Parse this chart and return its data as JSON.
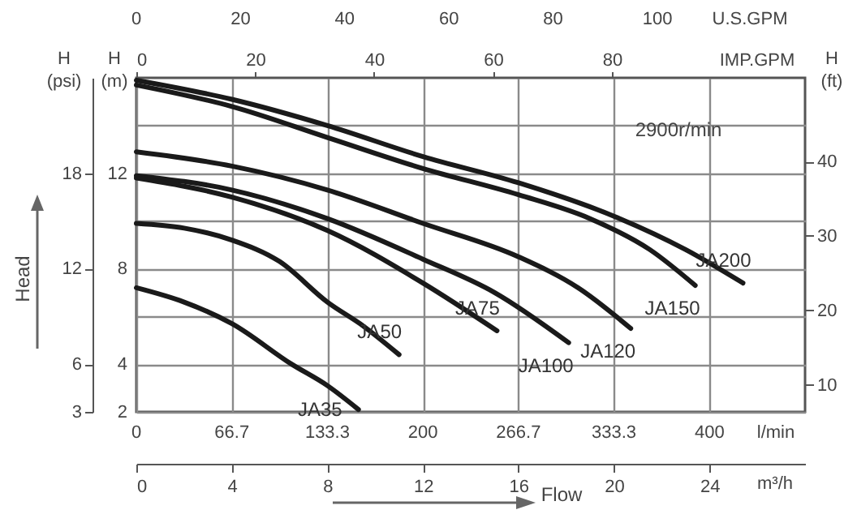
{
  "chart_data": {
    "type": "line",
    "annotations": [
      "2900r/min",
      "Head",
      "Flow",
      "0",
      "66.7",
      "133.3",
      "200",
      "266.7",
      "333.3",
      "400",
      "l/min",
      "0",
      "20",
      "40",
      "60",
      "80",
      "100",
      "U.S.GPM"
    ],
    "xlabel": "m³/h",
    "ylabel": "H (m)",
    "y2label": "H (psi)",
    "y3label": "H (ft)",
    "x2label": "IMP.GPM",
    "xlim": [
      0,
      28
    ],
    "xticks": [
      0,
      4,
      8,
      12,
      16,
      20,
      24
    ],
    "x2lim": [
      0,
      112.5
    ],
    "x2ticks": [
      0,
      20,
      40,
      60,
      80
    ],
    "ylim": [
      2,
      16
    ],
    "yticks": [
      2,
      4,
      {
        "value": 6,
        "label": null
      },
      8,
      {
        "value": 10,
        "label": null
      },
      12,
      {
        "value": 14,
        "label": null
      }
    ],
    "y2lim": [
      3,
      24
    ],
    "y2ticks": [
      3,
      6,
      12,
      18
    ],
    "y3lim": [
      6.4,
      51.2
    ],
    "y3ticks": [
      10,
      20,
      30,
      40
    ],
    "grid": true,
    "legend": false,
    "line_style": "solid",
    "marker": "none",
    "series": [
      {
        "name": "JA200",
        "color": "#1a1a1a",
        "x": [
          0,
          4,
          8,
          12,
          16,
          20,
          23,
          25.4
        ],
        "values": [
          15.9,
          15.1,
          14.0,
          12.7,
          11.6,
          10.2,
          8.8,
          7.4
        ]
      },
      {
        "name": "JA150",
        "color": "#1a1a1a",
        "x": [
          0,
          4,
          8,
          12,
          16,
          19,
          21.5,
          23.4
        ],
        "values": [
          15.7,
          14.8,
          13.5,
          12.2,
          11.1,
          10.1,
          8.8,
          7.3
        ]
      },
      {
        "name": "JA120",
        "color": "#1a1a1a",
        "x": [
          0,
          4,
          8,
          12,
          16,
          18.5,
          20.7
        ],
        "values": [
          12.9,
          12.3,
          11.3,
          9.9,
          8.5,
          7.2,
          5.5
        ]
      },
      {
        "name": "JA100",
        "color": "#1a1a1a",
        "x": [
          0,
          4,
          8,
          12,
          15,
          18.1
        ],
        "values": [
          11.9,
          11.3,
          10.1,
          8.4,
          7.0,
          4.9
        ]
      },
      {
        "name": "JA75",
        "color": "#1a1a1a",
        "x": [
          0,
          4,
          8,
          12,
          15.1
        ],
        "values": [
          11.8,
          11.0,
          9.6,
          7.4,
          5.4
        ]
      },
      {
        "name": "JA50",
        "color": "#1a1a1a",
        "x": [
          0,
          2,
          4,
          6,
          8,
          9.5,
          11.0
        ],
        "values": [
          9.9,
          9.7,
          9.2,
          8.3,
          6.6,
          5.6,
          4.4
        ]
      },
      {
        "name": "JA35",
        "color": "#1a1a1a",
        "x": [
          0,
          2,
          4,
          6.5,
          8,
          9.3
        ],
        "values": [
          7.2,
          6.6,
          5.7,
          4.0,
          3.1,
          2.1
        ]
      }
    ]
  }
}
